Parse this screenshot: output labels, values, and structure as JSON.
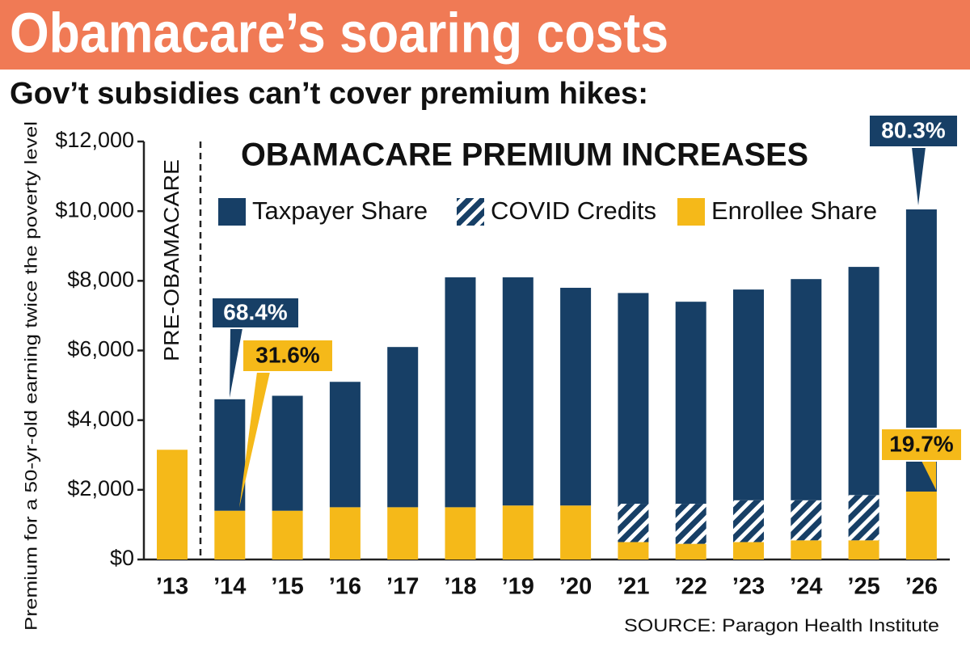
{
  "chart_data": {
    "type": "stacked-bar",
    "title": "Obamacare’s soaring costs",
    "subtitle": "Gov’t subsidies can’t cover premium hikes:",
    "chart_title": "OBAMACARE PREMIUM INCREASES",
    "y_label": "Premium for a 50-yr-old earning twice the poverty level",
    "divider_label": "PRE-OBAMACARE",
    "source": "SOURCE: Paragon Health Institute",
    "categories": [
      "’13",
      "’14",
      "’15",
      "’16",
      "’17",
      "’18",
      "’19",
      "’20",
      "’21",
      "’22",
      "’23",
      "’24",
      "’25",
      "’26"
    ],
    "series": [
      {
        "name": "Taxpayer Share",
        "color": "#173f66",
        "hatch": false,
        "values": [
          0,
          3200,
          3300,
          3600,
          4600,
          6600,
          6550,
          6250,
          6050,
          5800,
          6050,
          6350,
          6550,
          8100
        ]
      },
      {
        "name": "COVID Credits",
        "color": "#173f66",
        "hatch": true,
        "values": [
          0,
          0,
          0,
          0,
          0,
          0,
          0,
          0,
          1100,
          1150,
          1200,
          1150,
          1300,
          0
        ]
      },
      {
        "name": "Enrollee Share",
        "color": "#f5b919",
        "hatch": false,
        "values": [
          3150,
          1400,
          1400,
          1500,
          1500,
          1500,
          1550,
          1550,
          500,
          450,
          500,
          550,
          550,
          1950
        ]
      }
    ],
    "annotations": [
      "68.4%",
      "31.6%",
      "80.3%",
      "19.7%"
    ],
    "ylim": [
      0,
      12000
    ],
    "yticks": [
      {
        "value": 0,
        "label": "$0"
      },
      {
        "value": 2000,
        "label": "$2,000"
      },
      {
        "value": 4000,
        "label": "$4,000"
      },
      {
        "value": 6000,
        "label": "$6,000"
      },
      {
        "value": 8000,
        "label": "$8,000"
      },
      {
        "value": 10000,
        "label": "$10,000"
      },
      {
        "value": 12000,
        "label": "$12,000"
      }
    ],
    "grid": false
  }
}
